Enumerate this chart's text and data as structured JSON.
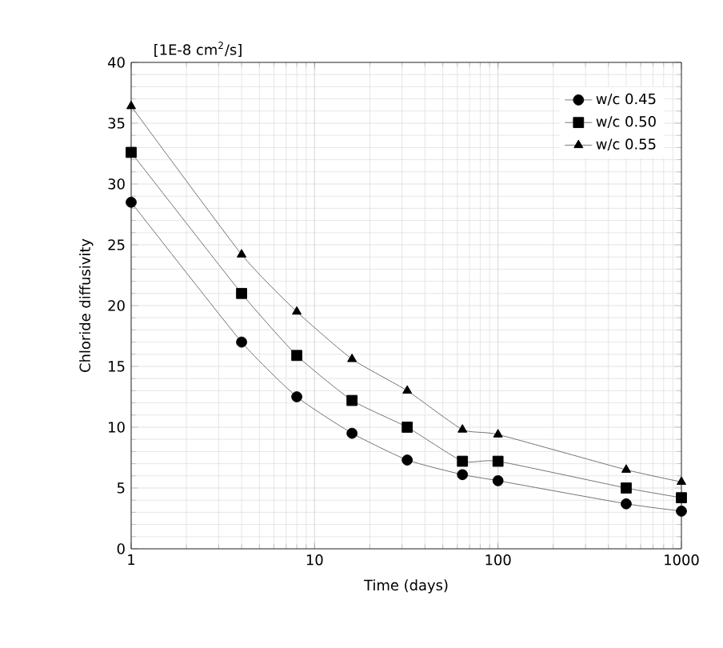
{
  "chart_data": {
    "type": "line",
    "xlabel": "Time (days)",
    "ylabel": "Chloride diffusivity",
    "annotations": [
      "[1E-8 cm$^{2}$/s]"
    ],
    "log": "x",
    "xlim": [
      1,
      1000
    ],
    "xticks": [
      1,
      10,
      100,
      1000
    ],
    "ylim": [
      0,
      40
    ],
    "yticks": [
      0,
      5,
      10,
      15,
      20,
      25,
      30,
      35,
      40
    ],
    "grid": true,
    "legend": "top right",
    "x": [
      1,
      4,
      8,
      16,
      32,
      64,
      100,
      500,
      1000
    ],
    "series": [
      {
        "name": "w/c 0.45",
        "color": "#000000",
        "marker": "circle",
        "values": [
          28.5,
          17,
          12.5,
          9.5,
          7.3,
          6.1,
          5.6,
          3.7,
          3.1
        ]
      },
      {
        "name": "w/c 0.50",
        "color": "#000000",
        "marker": "square",
        "values": [
          32.6,
          21,
          15.9,
          12.2,
          10,
          7.2,
          7.2,
          5.0,
          4.2
        ]
      },
      {
        "name": "w/c 0.55",
        "color": "#000000",
        "marker": "triangle",
        "values": [
          36.4,
          24.2,
          19.5,
          15.6,
          13,
          9.8,
          9.4,
          6.5,
          5.5
        ]
      }
    ]
  }
}
